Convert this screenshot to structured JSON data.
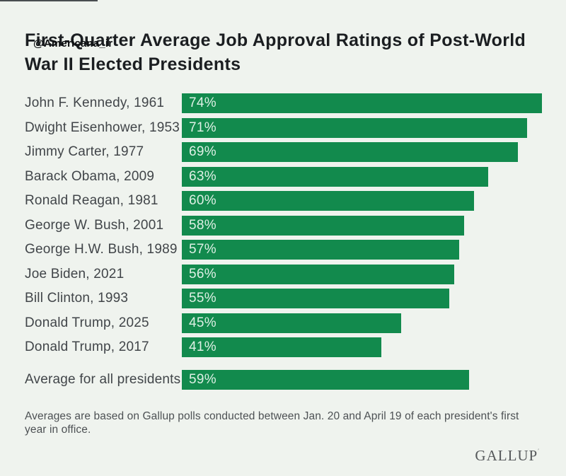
{
  "header": {
    "title_line1": "First-Quarter Average Job Approval Ratings of Post-World",
    "title_line2": "War II Elected Presidents",
    "watermark": "@Americana_ir"
  },
  "chart_data": {
    "type": "bar",
    "orientation": "horizontal",
    "title": "First-Quarter Average Job Approval Ratings of Post-World War II Elected Presidents",
    "categories": [
      "John F. Kennedy, 1961",
      "Dwight Eisenhower, 1953",
      "Jimmy Carter, 1977",
      "Barack Obama, 2009",
      "Ronald Reagan, 1981",
      "George W. Bush, 2001",
      "George H.W. Bush, 1989",
      "Joe Biden, 2021",
      "Bill Clinton, 1993",
      "Donald Trump, 2025",
      "Donald Trump, 2017"
    ],
    "values": [
      74,
      71,
      69,
      63,
      60,
      58,
      57,
      56,
      55,
      45,
      41
    ],
    "value_suffix": "%",
    "axis_max": 74,
    "average": {
      "label": "Average for all presidents",
      "value": 59
    },
    "value_labels": "inside-left",
    "grid": false,
    "legend": false,
    "bar_color": "#128a4d",
    "bar_label_color": "#def0e5"
  },
  "footnote": {
    "full": "Averages are based on Gallup polls conducted between Jan. 20 and April 19 of each president's first year in office.",
    "line1": "Averages are based on Gallup polls conducted between Jan. 20 and April 19 of each president's first",
    "line2": "year in office."
  },
  "brand": {
    "name": "GALLUP",
    "mark": "′"
  },
  "colors": {
    "background": "#eff3ee",
    "title_text": "#1b1e21",
    "label_text": "#414549",
    "footnote_text": "#4d5154",
    "brand_text": "#56595b"
  }
}
